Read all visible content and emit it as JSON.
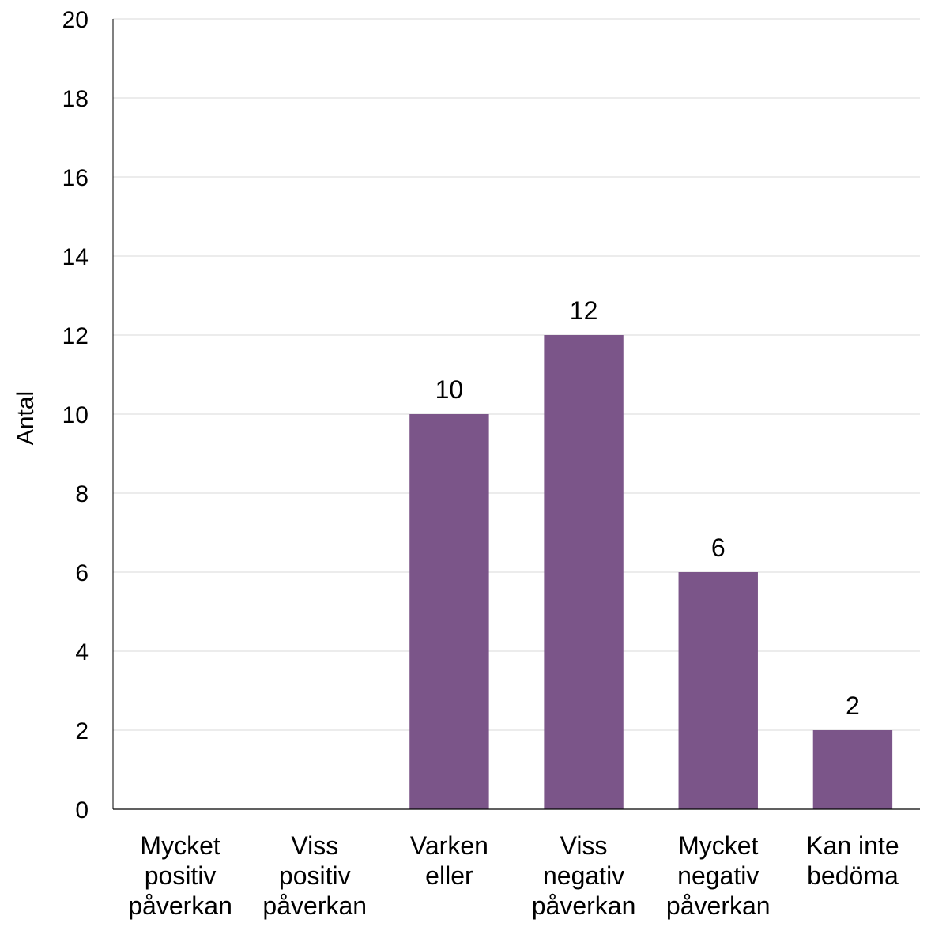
{
  "chart_data": {
    "type": "bar",
    "categories": [
      [
        "Mycket",
        "positiv",
        "påverkan"
      ],
      [
        "Viss",
        "positiv",
        "påverkan"
      ],
      [
        "Varken",
        "eller"
      ],
      [
        "Viss",
        "negativ",
        "påverkan"
      ],
      [
        "Mycket",
        "negativ",
        "påverkan"
      ],
      [
        "Kan inte",
        "bedöma"
      ]
    ],
    "values": [
      0,
      0,
      10,
      12,
      6,
      2
    ],
    "data_labels": [
      "",
      "",
      "10",
      "12",
      "6",
      "2"
    ],
    "ylabel": "Antal",
    "ylim": [
      0,
      20
    ],
    "yticks": [
      0,
      2,
      4,
      6,
      8,
      10,
      12,
      14,
      16,
      18,
      20
    ],
    "grid": true,
    "colors": {
      "bar": "#7b5589",
      "grid": "#d9d9d9",
      "axis": "#000000"
    }
  }
}
